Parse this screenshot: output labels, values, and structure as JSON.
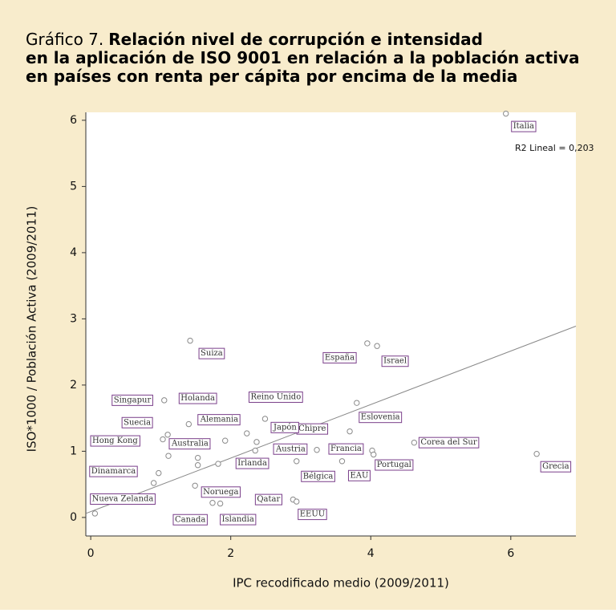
{
  "chart_data": {
    "type": "scatter",
    "title_prefix": "Gráfico 7.",
    "title": "Relación nivel de corrupción e intensidad en la aplicación de ISO 9001 en relación a la población activa en países con renta per cápita por encima de la media",
    "x_label": "IPC recodificado medio (2009/2011)",
    "y_label": "ISO*1000 / Población Activa (2009/2011)",
    "annotation": "R2 Lineal = 0,203",
    "labels": [
      "Italia",
      "Grecia",
      "Corea del Sur",
      "España",
      "Israel",
      "Suiza",
      "Eslovenia",
      "Singapur",
      "Holanda",
      "Reino Unido",
      "Chipre",
      "Hong Kong",
      "Alemania",
      "Japón",
      "Irlanda",
      "Austria",
      "Francia",
      "Portugal",
      "Bélgica",
      "EAU",
      "Australia",
      "Suecia",
      "Dinamarca",
      "Nueva Zelanda",
      "Noruega",
      "Canada",
      "Islandia",
      "Qatar",
      "EEUU",
      null,
      null,
      null,
      null,
      null
    ],
    "x": [
      5.93,
      6.37,
      4.62,
      3.95,
      4.09,
      1.42,
      3.8,
      1.05,
      1.4,
      2.49,
      3.7,
      1.03,
      2.23,
      2.37,
      2.35,
      3.23,
      4.02,
      4.04,
      2.94,
      3.59,
      1.11,
      1.1,
      0.97,
      0.9,
      1.49,
      1.74,
      1.85,
      2.89,
      2.94,
      0.06,
      1.53,
      1.53,
      1.92,
      1.82
    ],
    "values": [
      6.1,
      0.96,
      1.13,
      2.63,
      2.59,
      2.67,
      1.73,
      1.77,
      1.41,
      1.49,
      1.3,
      1.18,
      1.27,
      1.14,
      1.01,
      1.02,
      1.01,
      0.95,
      0.85,
      0.85,
      0.93,
      1.25,
      0.67,
      0.52,
      0.48,
      0.22,
      0.21,
      0.27,
      0.24,
      0.06,
      0.9,
      0.79,
      1.16,
      0.81
    ],
    "fit_line": {
      "x": [
        -0.07,
        6.93
      ],
      "y": [
        0.06,
        2.89
      ]
    },
    "marker_color": "#8a8a8a",
    "label_color": "#7a3f8a",
    "xlim": [
      -0.07,
      6.93
    ],
    "ylim": [
      -0.28,
      6.12
    ],
    "xticks": [
      0,
      2,
      4,
      6
    ],
    "yticks": [
      0,
      1,
      2,
      3,
      4,
      5,
      6
    ]
  }
}
